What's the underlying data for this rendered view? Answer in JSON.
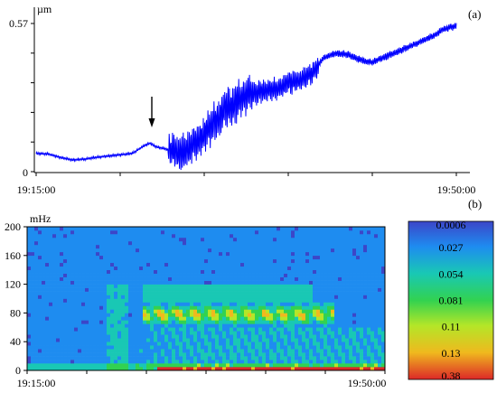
{
  "chart_data": [
    {
      "panel": "(a)",
      "type": "line",
      "ylabel": "µm",
      "yticks": [
        "0",
        "0.57"
      ],
      "ylim": [
        0,
        0.57
      ],
      "xlabels": [
        "19:15:00",
        "19:50:00"
      ],
      "xlim": [
        "19:15:00",
        "19:50:00"
      ],
      "annotation": "arrow pointing down at ~19:24",
      "series": [
        {
          "color": "#0000ff",
          "points": [
            [
              "19:15:00",
              0.07
            ],
            [
              "19:16:00",
              0.068
            ],
            [
              "19:17:00",
              0.055
            ],
            [
              "19:18:00",
              0.045
            ],
            [
              "19:19:00",
              0.048
            ],
            [
              "19:20:00",
              0.055
            ],
            [
              "19:21:00",
              0.06
            ],
            [
              "19:22:00",
              0.065
            ],
            [
              "19:23:00",
              0.07
            ],
            [
              "19:24:00",
              0.1
            ],
            [
              "19:24:30",
              0.11
            ],
            [
              "19:25:00",
              0.095
            ],
            [
              "19:26:00",
              0.085
            ],
            [
              "19:27:00",
              0.07
            ],
            [
              "19:28:00",
              0.1
            ],
            [
              "19:29:00",
              0.14
            ],
            [
              "19:30:00",
              0.2
            ],
            [
              "19:31:00",
              0.25
            ],
            [
              "19:32:00",
              0.28
            ],
            [
              "19:33:00",
              0.3
            ],
            [
              "19:34:00",
              0.31
            ],
            [
              "19:35:00",
              0.32
            ],
            [
              "19:36:00",
              0.34
            ],
            [
              "19:37:00",
              0.35
            ],
            [
              "19:38:00",
              0.38
            ],
            [
              "19:39:00",
              0.44
            ],
            [
              "19:40:00",
              0.455
            ],
            [
              "19:41:00",
              0.45
            ],
            [
              "19:42:00",
              0.43
            ],
            [
              "19:43:00",
              0.42
            ],
            [
              "19:44:00",
              0.44
            ],
            [
              "19:45:00",
              0.46
            ],
            [
              "19:46:00",
              0.48
            ],
            [
              "19:47:00",
              0.5
            ],
            [
              "19:48:00",
              0.52
            ],
            [
              "19:49:00",
              0.55
            ],
            [
              "19:50:00",
              0.56
            ]
          ]
        }
      ]
    },
    {
      "panel": "(b)",
      "type": "heatmap",
      "ylabel": "mHz",
      "yticks": [
        0,
        40,
        80,
        120,
        160,
        200
      ],
      "ylim": [
        0,
        200
      ],
      "xlabels": [
        "19:15:00",
        "19:50:00"
      ],
      "xlim": [
        "19:15:00",
        "19:50:00"
      ],
      "colorbar": {
        "labels": [
          "0.0006",
          "0.027",
          "0.054",
          "0.081",
          "0.11",
          "0.13",
          "0.38"
        ],
        "colors": [
          "#3c46c8",
          "#1e8cf0",
          "#19c8b4",
          "#32d250",
          "#b4e628",
          "#f0b91e",
          "#dc2828"
        ]
      }
    }
  ],
  "colors": {
    "line": "#0000ff",
    "background": "#ffffff"
  }
}
